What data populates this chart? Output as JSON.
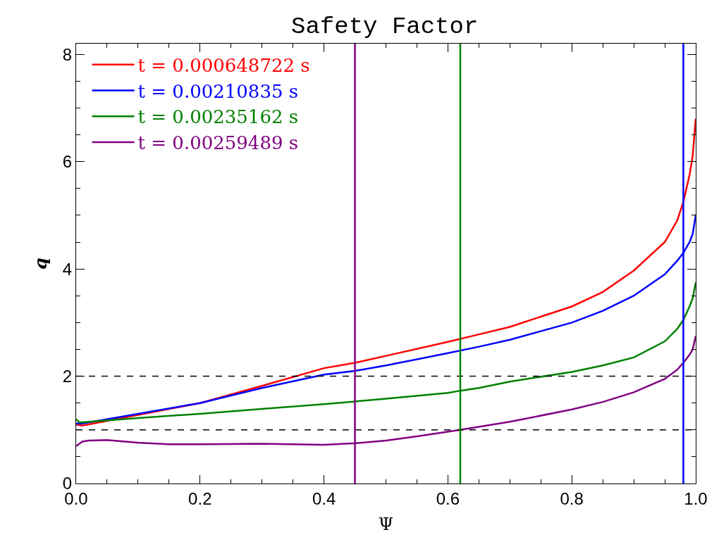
{
  "chart_data": {
    "type": "line",
    "title": "Safety Factor",
    "xlabel": "Ψ",
    "ylabel": "q",
    "xlim": [
      0,
      1
    ],
    "xticks": [
      {
        "value": 0,
        "label": "0.0"
      },
      0.2,
      0.4,
      0.6,
      0.8,
      {
        "value": 1,
        "label": "1.0"
      }
    ],
    "ylim": [
      0,
      8.2
    ],
    "yticks": [
      0,
      2,
      4,
      6,
      8
    ],
    "legend": "top left",
    "marker": "none",
    "line_style": "solid",
    "series": [
      {
        "name": "t = 0.000648722 s",
        "color": "#ff0000",
        "x": [
          0,
          0.01,
          0.1,
          0.2,
          0.3,
          0.4,
          0.45,
          0.5,
          0.6,
          0.65,
          0.7,
          0.8,
          0.85,
          0.9,
          0.95,
          0.97,
          0.98,
          0.99,
          0.995,
          1.0
        ],
        "values": [
          1.1,
          1.08,
          1.28,
          1.5,
          1.82,
          2.15,
          2.25,
          2.38,
          2.64,
          2.78,
          2.92,
          3.3,
          3.57,
          3.97,
          4.5,
          4.9,
          5.25,
          5.75,
          6.1,
          6.8
        ]
      },
      {
        "name": "t = 0.00210835 s",
        "color": "#0000ff",
        "x": [
          0,
          0.01,
          0.1,
          0.2,
          0.3,
          0.4,
          0.45,
          0.5,
          0.6,
          0.65,
          0.7,
          0.8,
          0.85,
          0.9,
          0.95,
          0.97,
          0.98,
          0.99,
          0.995,
          1.0
        ],
        "values": [
          1.12,
          1.12,
          1.3,
          1.5,
          1.78,
          2.03,
          2.1,
          2.2,
          2.43,
          2.55,
          2.68,
          3.0,
          3.22,
          3.5,
          3.9,
          4.15,
          4.3,
          4.5,
          4.65,
          5.0
        ]
      },
      {
        "name": "t = 0.00235162 s",
        "color": "#008000",
        "x": [
          0,
          0.005,
          0.01,
          0.1,
          0.2,
          0.3,
          0.4,
          0.45,
          0.5,
          0.6,
          0.62,
          0.65,
          0.7,
          0.8,
          0.85,
          0.9,
          0.95,
          0.97,
          0.98,
          0.99,
          0.995,
          1.0
        ],
        "values": [
          1.2,
          1.14,
          1.14,
          1.22,
          1.3,
          1.39,
          1.48,
          1.53,
          1.58,
          1.69,
          1.73,
          1.78,
          1.9,
          2.08,
          2.2,
          2.35,
          2.65,
          2.88,
          3.05,
          3.3,
          3.45,
          3.75
        ]
      },
      {
        "name": "t = 0.00259489 s",
        "color": "#800080",
        "x": [
          0,
          0.01,
          0.02,
          0.05,
          0.1,
          0.15,
          0.2,
          0.3,
          0.4,
          0.45,
          0.5,
          0.55,
          0.62,
          0.7,
          0.8,
          0.85,
          0.9,
          0.95,
          0.97,
          0.98,
          0.99,
          0.995,
          1.0
        ],
        "values": [
          0.7,
          0.78,
          0.8,
          0.81,
          0.76,
          0.73,
          0.73,
          0.74,
          0.72,
          0.75,
          0.8,
          0.88,
          1.0,
          1.15,
          1.38,
          1.52,
          1.7,
          1.95,
          2.12,
          2.25,
          2.4,
          2.5,
          2.75
        ]
      }
    ],
    "ref_lines": [
      {
        "axis": "y",
        "value": 2,
        "color": "#000000",
        "line_style": "dashed"
      },
      {
        "axis": "y",
        "value": 1,
        "color": "#000000",
        "line_style": "dashed"
      },
      {
        "axis": "x",
        "value": 0.45,
        "color": "#800080",
        "line_style": "solid"
      },
      {
        "axis": "x",
        "value": 0.62,
        "color": "#008000",
        "line_style": "solid"
      },
      {
        "axis": "x",
        "value": 0.98,
        "color": "#0000ff",
        "line_style": "solid"
      }
    ]
  }
}
